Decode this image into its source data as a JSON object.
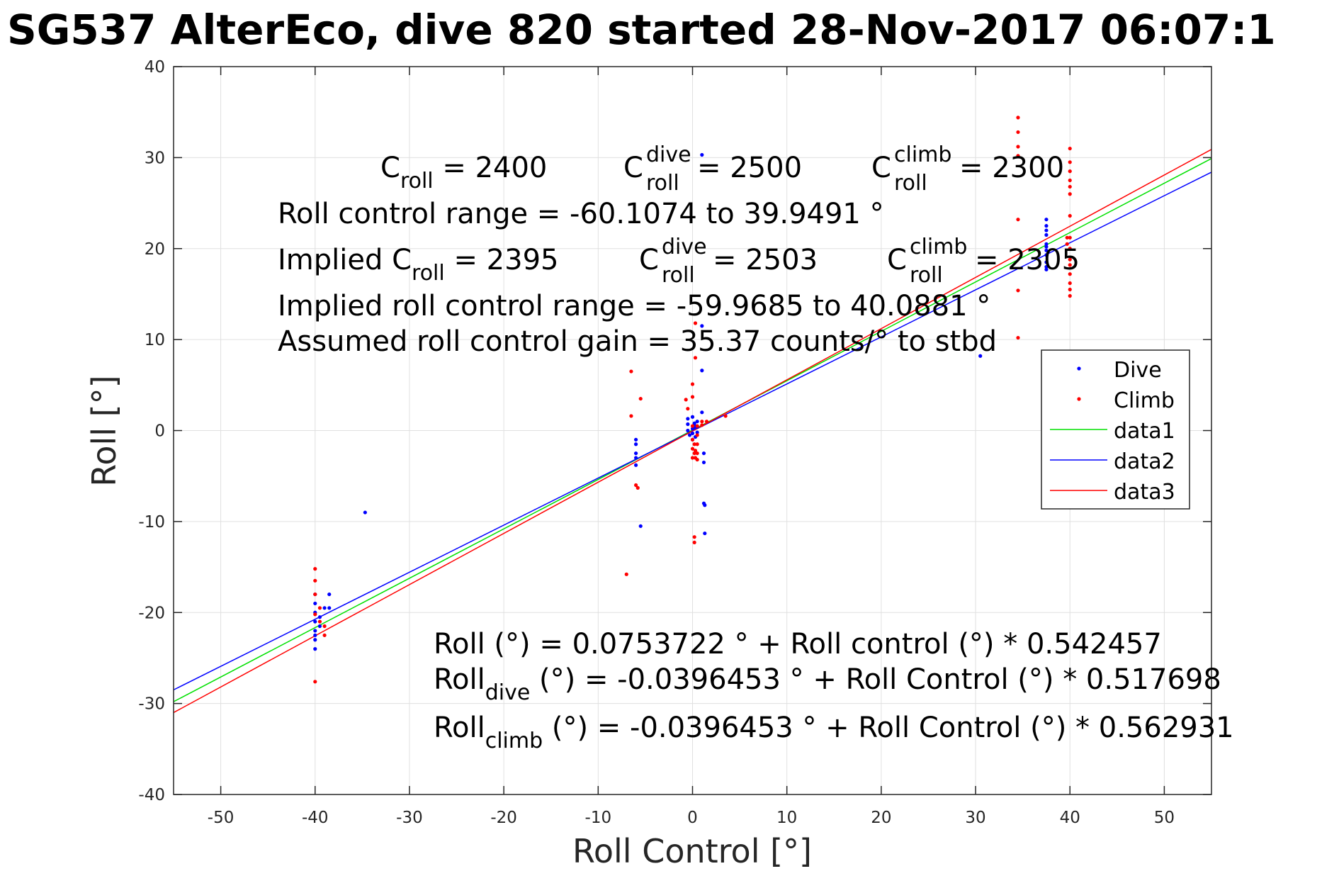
{
  "colors": {
    "dive": "#0000ff",
    "climb": "#ff0000",
    "data1": "#00e000",
    "data2": "#0000ff",
    "data3": "#ff0000"
  },
  "chart_data": {
    "type": "scatter",
    "title": "SG537 AlterEco, dive 820 started 28-Nov-2017 06:07:1",
    "xlabel": "Roll Control [°]",
    "ylabel": "Roll [°]",
    "xlim": [
      -55,
      55
    ],
    "ylim": [
      -40,
      40
    ],
    "xticks": [
      -50,
      -40,
      -30,
      -20,
      -10,
      0,
      10,
      20,
      30,
      40,
      50
    ],
    "yticks": [
      -40,
      -30,
      -20,
      -10,
      0,
      10,
      20,
      30,
      40
    ],
    "grid": true,
    "legend": {
      "placement": "right",
      "entries": [
        "Dive",
        "Climb",
        "data1",
        "data2",
        "data3"
      ]
    },
    "series": [
      {
        "name": "Dive",
        "kind": "points",
        "x": [
          -40,
          -40,
          -40,
          -40,
          -40,
          -40,
          -40,
          -40,
          -39.5,
          -39.5,
          -39,
          -38.5,
          -38.5,
          -34.7,
          -6,
          -6,
          -6,
          -6,
          -6,
          -5.5,
          -0.5,
          -0.5,
          -0.5,
          -0.3,
          0,
          0,
          0,
          0,
          0.2,
          0.2,
          0.3,
          0.3,
          0.5,
          0.5,
          0.5,
          1,
          1,
          1,
          1,
          1.2,
          1.2,
          1.2,
          1.3,
          1.3,
          30.5,
          37.5,
          37.5,
          37.5,
          37.5,
          37.5,
          37.5,
          37.5,
          37.5,
          37.5,
          37.5,
          37.5
        ],
        "y": [
          -18,
          -19,
          -20,
          -21,
          -22,
          -23,
          -24,
          -22.5,
          -21.5,
          -20.5,
          -19.5,
          -18,
          -19.5,
          -9,
          -1,
          -1.5,
          -2.5,
          -3,
          -3.8,
          -10.5,
          1.3,
          0.7,
          0,
          -0.5,
          -1,
          1.5,
          0.2,
          -0.3,
          0.8,
          0.3,
          -0.7,
          0.5,
          -0.2,
          1,
          0.4,
          30.3,
          11.5,
          6.6,
          2,
          -2.5,
          -3.5,
          -8,
          -8.2,
          -11.3,
          8.2,
          23.2,
          22.5,
          22,
          21.5,
          20.5,
          19.8,
          18.5,
          19.3,
          18,
          17.7,
          20.2
        ]
      },
      {
        "name": "Climb",
        "kind": "points",
        "x": [
          -40,
          -40,
          -40,
          -40,
          -40,
          -39.5,
          -39.5,
          -39,
          -39,
          -7,
          -6.5,
          -6.5,
          -6,
          -5.8,
          -5.5,
          -0.7,
          -0.5,
          0,
          0,
          0,
          0,
          0,
          0,
          0.2,
          0.2,
          0.2,
          0.2,
          0.3,
          0.3,
          0.3,
          0.3,
          0.5,
          0.5,
          0.5,
          0.5,
          0.5,
          1,
          1,
          1.5,
          3.5,
          34.5,
          34.5,
          34.5,
          34.5,
          34.5,
          34.5,
          34.5,
          39.7,
          39.7,
          40,
          40,
          40,
          40,
          40,
          40,
          40,
          40,
          40,
          40,
          40,
          40,
          40,
          40,
          40
        ],
        "y": [
          -15.2,
          -16.5,
          -18,
          -20.2,
          -27.6,
          -19.5,
          -21,
          -21.5,
          -22.5,
          -15.8,
          6.5,
          1.6,
          -6,
          -6.3,
          3.5,
          3.4,
          2.4,
          5.1,
          3.7,
          0.5,
          -1,
          -2,
          -3,
          -11.7,
          -12.3,
          -1.5,
          -2.5,
          11.8,
          8,
          -3,
          -2.2,
          0.5,
          -0.5,
          -1.5,
          -2.5,
          -3.2,
          1,
          0.6,
          1,
          1.6,
          34.4,
          32.8,
          31.2,
          30.2,
          23.2,
          15.4,
          10.2,
          21.2,
          20.5,
          31,
          29.5,
          28.5,
          27.5,
          26.8,
          26,
          23.6,
          21.2,
          20,
          18.8,
          18.2,
          17.2,
          16.2,
          15.5,
          14.8
        ]
      },
      {
        "name": "data1",
        "kind": "line",
        "x": [
          -55,
          55
        ],
        "y": [
          -29.8,
          29.9
        ]
      },
      {
        "name": "data2",
        "kind": "line",
        "x": [
          -55,
          55
        ],
        "y": [
          -28.5,
          28.4
        ]
      },
      {
        "name": "data3",
        "kind": "line",
        "x": [
          -55,
          55
        ],
        "y": [
          -31.0,
          30.9
        ]
      }
    ],
    "annotations": {
      "c_roll": {
        "base": "C",
        "sub": "roll",
        "value": " = 2400"
      },
      "c_roll_dive": {
        "base": "C",
        "sup": "dive",
        "sub": "roll",
        "value": " = 2500"
      },
      "c_roll_climb": {
        "base": "C",
        "sup": "climb",
        "sub": "roll",
        "value": " = 2300"
      },
      "range": "Roll control range = -60.1074 to 39.9491 °",
      "implied_label": "Implied C",
      "implied_sub": "roll",
      "implied_value": " = 2395",
      "implied_dive": {
        "base": "C",
        "sup": "dive",
        "sub": "roll",
        "value": " = 2503"
      },
      "implied_climb": {
        "base": "C",
        "sup": "climb",
        "sub": "roll",
        "value": " = 2305"
      },
      "implied_range": "Implied roll control range = -59.9685 to 40.0881 °",
      "gain": "Assumed roll control gain = 35.37 counts/° to stbd",
      "eq1": "Roll (°) = 0.0753722 ° + Roll control (°) * 0.542457",
      "eq2_base": "Roll",
      "eq2_sub": "dive",
      "eq2_rest": " (°) = -0.0396453 ° + Roll Control (°) * 0.517698",
      "eq3_base": "Roll",
      "eq3_sub": "climb",
      "eq3_rest": " (°) = -0.0396453 ° + Roll Control (°) * 0.562931"
    }
  }
}
